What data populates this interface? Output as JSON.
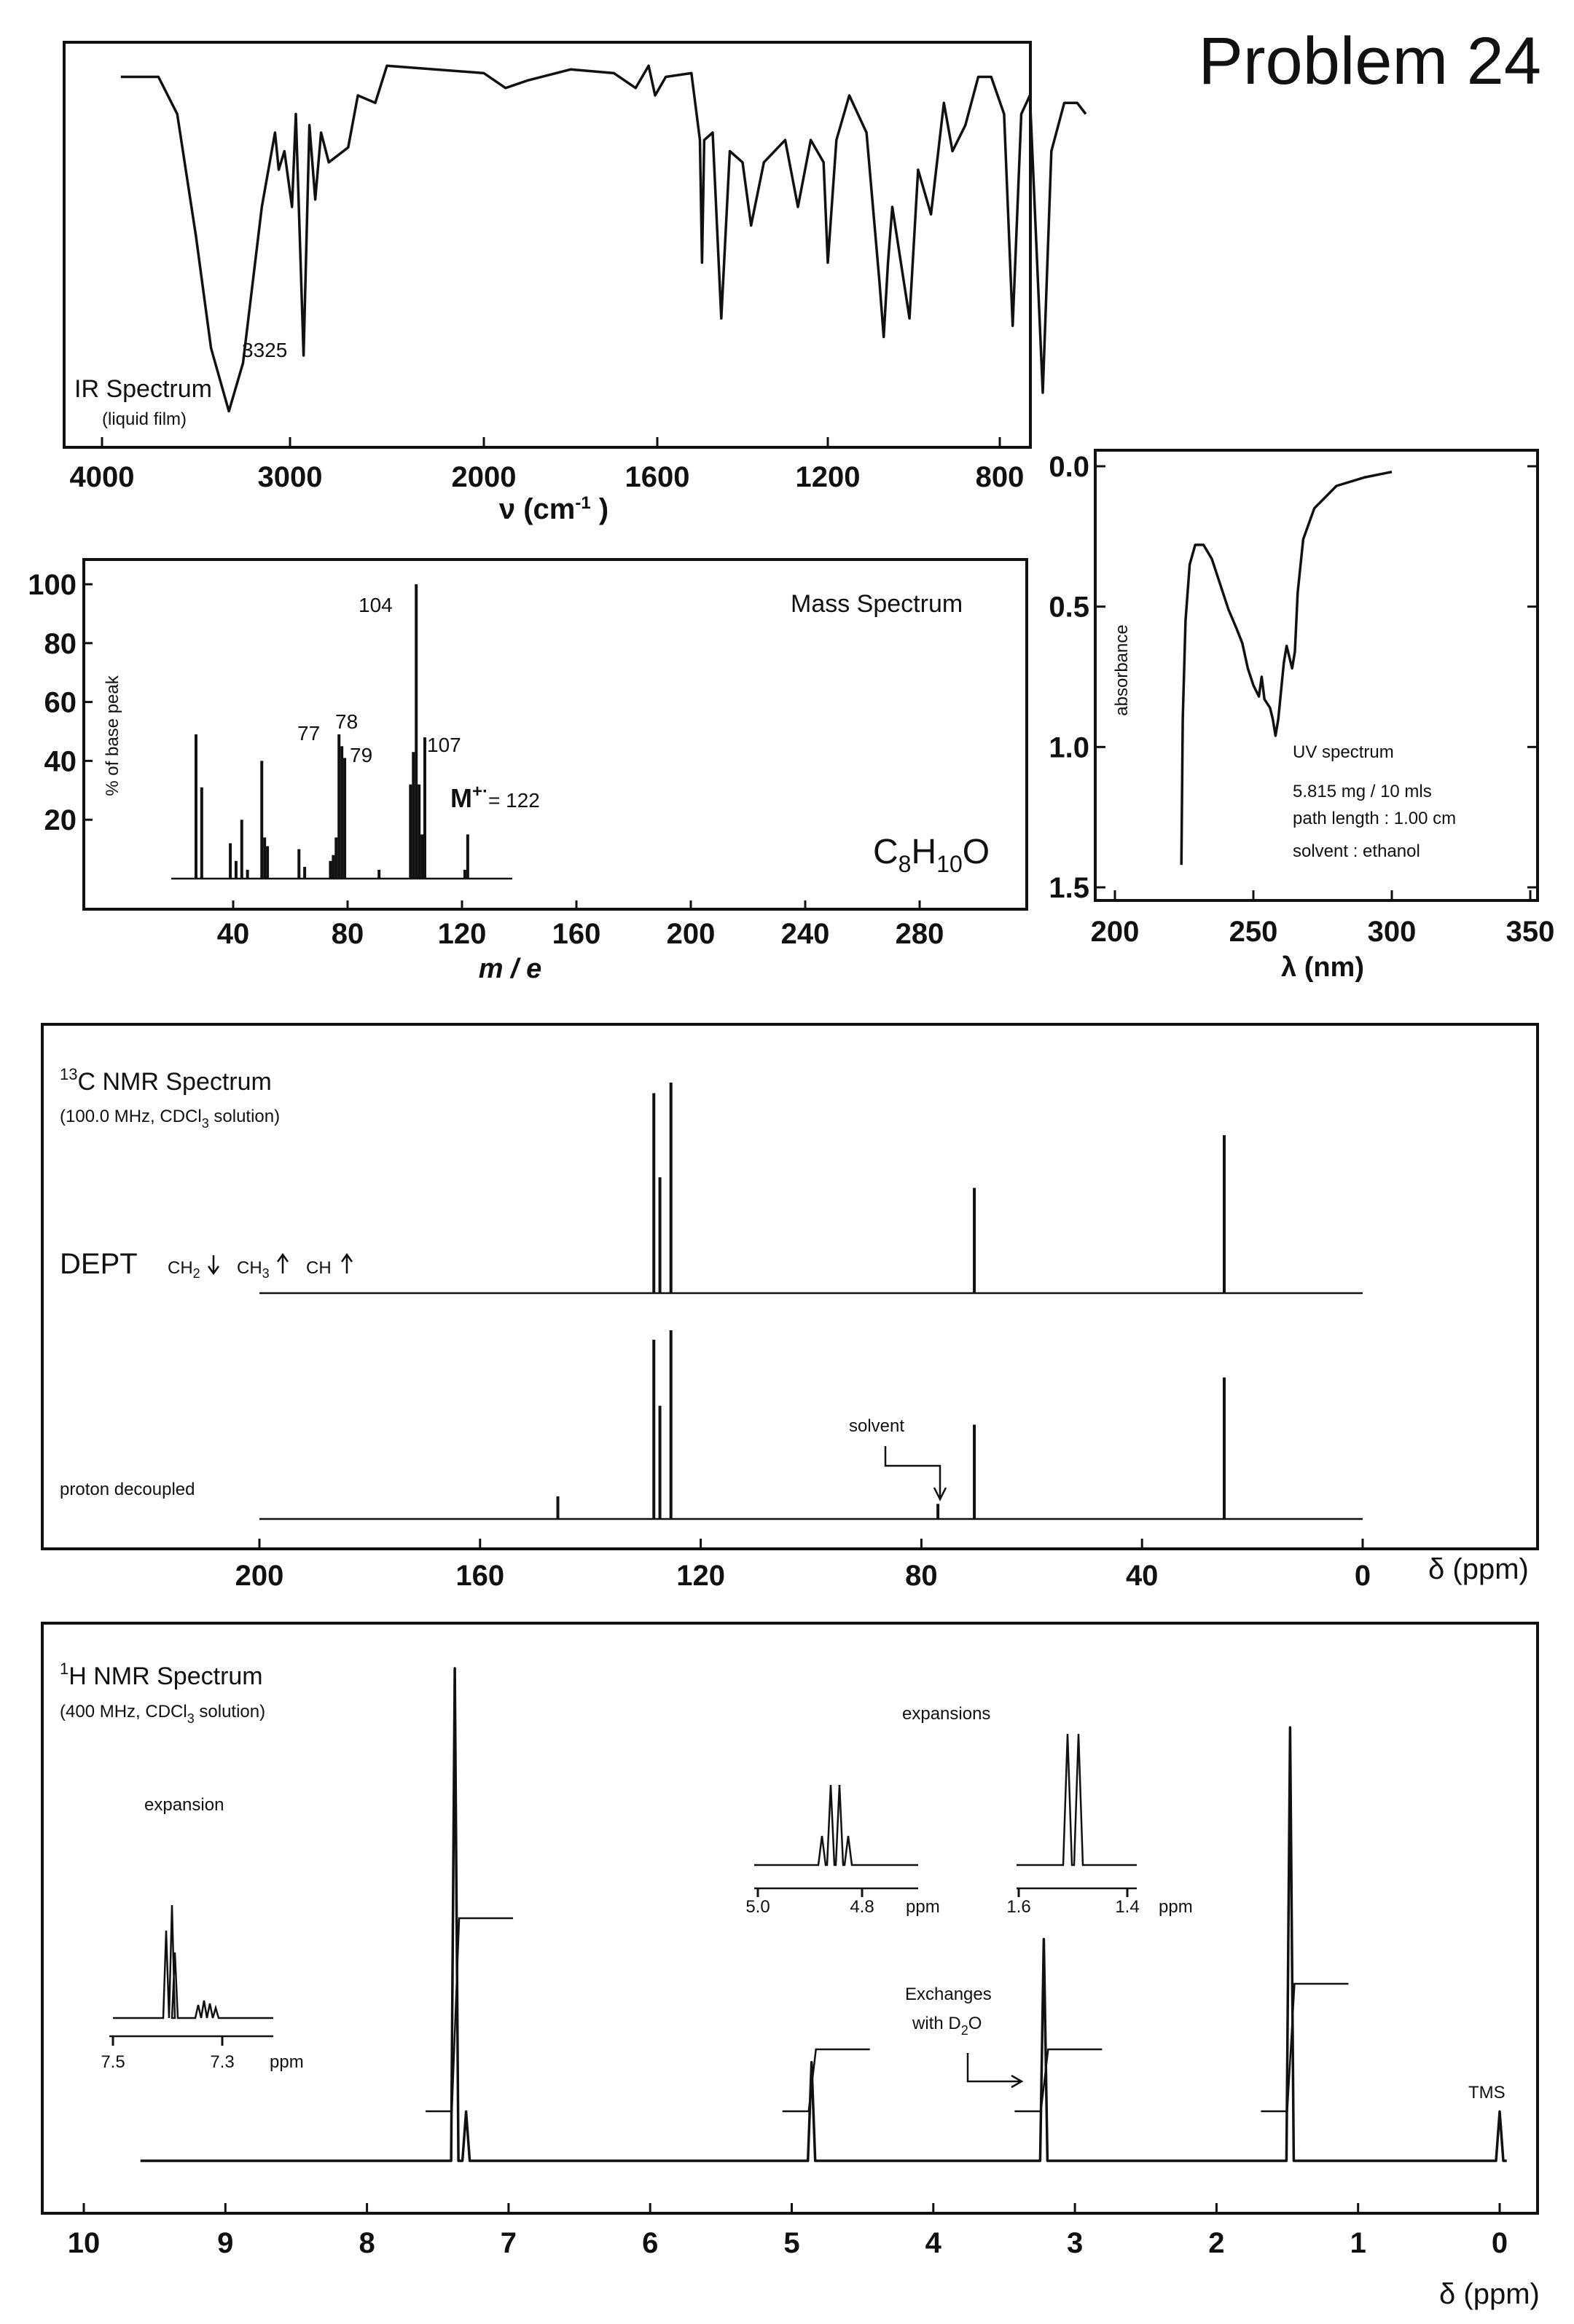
{
  "problem_title": "Problem 24",
  "chart_data": [
    {
      "id": "ir",
      "type": "line",
      "title": "IR Spectrum",
      "subtitle": "(liquid film)",
      "xlabel": "ν (cm-1)",
      "x_ticks": [
        "4000",
        "3000",
        "2000",
        "1600",
        "1200",
        "800"
      ],
      "annotations": [
        {
          "x": 3325,
          "label": "3325"
        }
      ],
      "xlim": [
        4000,
        600
      ],
      "y_unit": "transmittance (%)",
      "series": [
        {
          "points": [
            [
              3900,
              95
            ],
            [
              3700,
              95
            ],
            [
              3600,
              85
            ],
            [
              3500,
              52
            ],
            [
              3420,
              22
            ],
            [
              3325,
              5
            ],
            [
              3250,
              18
            ],
            [
              3150,
              60
            ],
            [
              3080,
              80
            ],
            [
              3060,
              70
            ],
            [
              3030,
              75
            ],
            [
              2990,
              60
            ],
            [
              2970,
              85
            ],
            [
              2930,
              20
            ],
            [
              2900,
              82
            ],
            [
              2870,
              62
            ],
            [
              2840,
              80
            ],
            [
              2800,
              72
            ],
            [
              2700,
              76
            ],
            [
              2650,
              90
            ],
            [
              2560,
              88
            ],
            [
              2500,
              98
            ],
            [
              2000,
              96
            ],
            [
              1950,
              92
            ],
            [
              1900,
              94
            ],
            [
              1800,
              97
            ],
            [
              1700,
              96
            ],
            [
              1650,
              92
            ],
            [
              1620,
              98
            ],
            [
              1605,
              90
            ],
            [
              1580,
              95
            ],
            [
              1520,
              96
            ],
            [
              1500,
              78
            ],
            [
              1495,
              45
            ],
            [
              1490,
              78
            ],
            [
              1470,
              80
            ],
            [
              1450,
              30
            ],
            [
              1430,
              75
            ],
            [
              1400,
              72
            ],
            [
              1380,
              55
            ],
            [
              1350,
              72
            ],
            [
              1300,
              78
            ],
            [
              1270,
              60
            ],
            [
              1240,
              78
            ],
            [
              1210,
              72
            ],
            [
              1200,
              45
            ],
            [
              1180,
              78
            ],
            [
              1150,
              90
            ],
            [
              1110,
              80
            ],
            [
              1080,
              40
            ],
            [
              1070,
              25
            ],
            [
              1060,
              45
            ],
            [
              1050,
              60
            ],
            [
              1030,
              45
            ],
            [
              1010,
              30
            ],
            [
              990,
              70
            ],
            [
              960,
              58
            ],
            [
              930,
              88
            ],
            [
              910,
              75
            ],
            [
              880,
              82
            ],
            [
              850,
              95
            ],
            [
              820,
              95
            ],
            [
              790,
              85
            ],
            [
              770,
              28
            ],
            [
              750,
              85
            ],
            [
              730,
              90
            ],
            [
              700,
              10
            ],
            [
              680,
              75
            ],
            [
              650,
              88
            ],
            [
              620,
              88
            ],
            [
              600,
              85
            ]
          ]
        }
      ]
    },
    {
      "id": "ms",
      "type": "bar",
      "title": "Mass Spectrum",
      "xlabel": "m / e",
      "ylabel": "% of base peak",
      "x_ticks": [
        "40",
        "80",
        "120",
        "160",
        "200",
        "240",
        "280"
      ],
      "y_ticks": [
        "100",
        "80",
        "60",
        "40",
        "20"
      ],
      "xlim": [
        0,
        300
      ],
      "ylim": [
        0,
        100
      ],
      "formula": "C8H10O",
      "molecular_ion": "M+· = 122",
      "peak_labels": [
        "104",
        "77",
        "78",
        "79",
        "107"
      ],
      "series": [
        {
          "x": [
            27,
            29,
            39,
            41,
            43,
            45,
            50,
            51,
            52,
            63,
            65,
            74,
            75,
            76,
            77,
            78,
            79,
            91,
            102,
            103,
            104,
            105,
            106,
            107,
            121,
            122
          ],
          "values": [
            49,
            31,
            12,
            6,
            20,
            3,
            40,
            14,
            11,
            10,
            4,
            6,
            8,
            14,
            49,
            45,
            41,
            3,
            32,
            43,
            100,
            32,
            15,
            48,
            3,
            15
          ]
        }
      ]
    },
    {
      "id": "uv",
      "type": "line",
      "title": "UV spectrum",
      "notes": [
        "5.815  mg / 10 mls",
        "path length : 1.00 cm",
        "solvent : ethanol"
      ],
      "xlabel": "λ (nm)",
      "ylabel": "absorbance",
      "x_ticks": [
        "200",
        "250",
        "300",
        "350"
      ],
      "y_ticks": [
        "0.0",
        "0.5",
        "1.0",
        "1.5"
      ],
      "xlim": [
        200,
        350
      ],
      "ylim": [
        1.5,
        0.0
      ],
      "series": [
        {
          "points": [
            [
              224,
              1.42
            ],
            [
              224.5,
              0.9
            ],
            [
              225.5,
              0.55
            ],
            [
              227,
              0.35
            ],
            [
              229,
              0.28
            ],
            [
              232,
              0.28
            ],
            [
              235,
              0.33
            ],
            [
              238,
              0.42
            ],
            [
              241,
              0.51
            ],
            [
              244,
              0.58
            ],
            [
              246,
              0.63
            ],
            [
              248,
              0.72
            ],
            [
              250,
              0.78
            ],
            [
              252,
              0.82
            ],
            [
              253,
              0.75
            ],
            [
              254,
              0.83
            ],
            [
              256,
              0.86
            ],
            [
              257,
              0.9
            ],
            [
              258,
              0.96
            ],
            [
              259,
              0.9
            ],
            [
              260,
              0.8
            ],
            [
              261,
              0.7
            ],
            [
              262,
              0.64
            ],
            [
              263,
              0.68
            ],
            [
              264,
              0.72
            ],
            [
              265,
              0.66
            ],
            [
              266,
              0.45
            ],
            [
              268,
              0.26
            ],
            [
              272,
              0.15
            ],
            [
              280,
              0.07
            ],
            [
              290,
              0.04
            ],
            [
              300,
              0.02
            ]
          ]
        }
      ]
    },
    {
      "id": "c13",
      "type": "bar",
      "title": "13C NMR Spectrum",
      "subtitle": "(100.0 MHz, CDCl3 solution)",
      "dept_label": "DEPT",
      "dept_legend": [
        "CH2",
        "CH3",
        "CH"
      ],
      "decoupled_label": "proton decoupled",
      "solvent_label": "solvent",
      "xlabel": "δ (ppm)",
      "x_ticks": [
        "200",
        "160",
        "120",
        "80",
        "40",
        "0"
      ],
      "xlim": [
        200,
        0
      ],
      "series": [
        {
          "name": "DEPT",
          "x": [
            128.5,
            127.4,
            125.4,
            70.4,
            25.1
          ],
          "values": [
            95,
            55,
            100,
            50,
            75
          ]
        },
        {
          "name": "proton decoupled",
          "x": [
            145.9,
            128.5,
            127.4,
            125.4,
            77.0,
            70.4,
            25.1
          ],
          "values": [
            12,
            95,
            60,
            100,
            8,
            50,
            75
          ]
        }
      ]
    },
    {
      "id": "h1",
      "type": "line",
      "title": "1H NMR Spectrum",
      "subtitle": "(400 MHz, CDCl3 solution)",
      "xlabel": "δ (ppm)",
      "x_ticks": [
        "10",
        "9",
        "8",
        "7",
        "6",
        "5",
        "4",
        "3",
        "2",
        "1",
        "0"
      ],
      "xlim": [
        10,
        0
      ],
      "labels": {
        "tms": "TMS",
        "exchanges": "Exchanges",
        "with_d2o": "with D2O",
        "expansion": "expansion",
        "expansions": "expansions",
        "ppm": "ppm"
      },
      "expansion_ticks": {
        "aromatic": [
          "7.5",
          "7.3"
        ],
        "ch": [
          "5.0",
          "4.8"
        ],
        "ch3": [
          "1.6",
          "1.4"
        ]
      },
      "peaks": [
        {
          "x": 7.38,
          "height": 100,
          "integration": 5
        },
        {
          "x": 7.3,
          "height": 10
        },
        {
          "x": 4.86,
          "height": 20,
          "integration": 1
        },
        {
          "x": 3.22,
          "height": 45,
          "integration": 1
        },
        {
          "x": 1.48,
          "height": 88,
          "integration": 3
        },
        {
          "x": 0.0,
          "height": 10
        }
      ]
    }
  ]
}
